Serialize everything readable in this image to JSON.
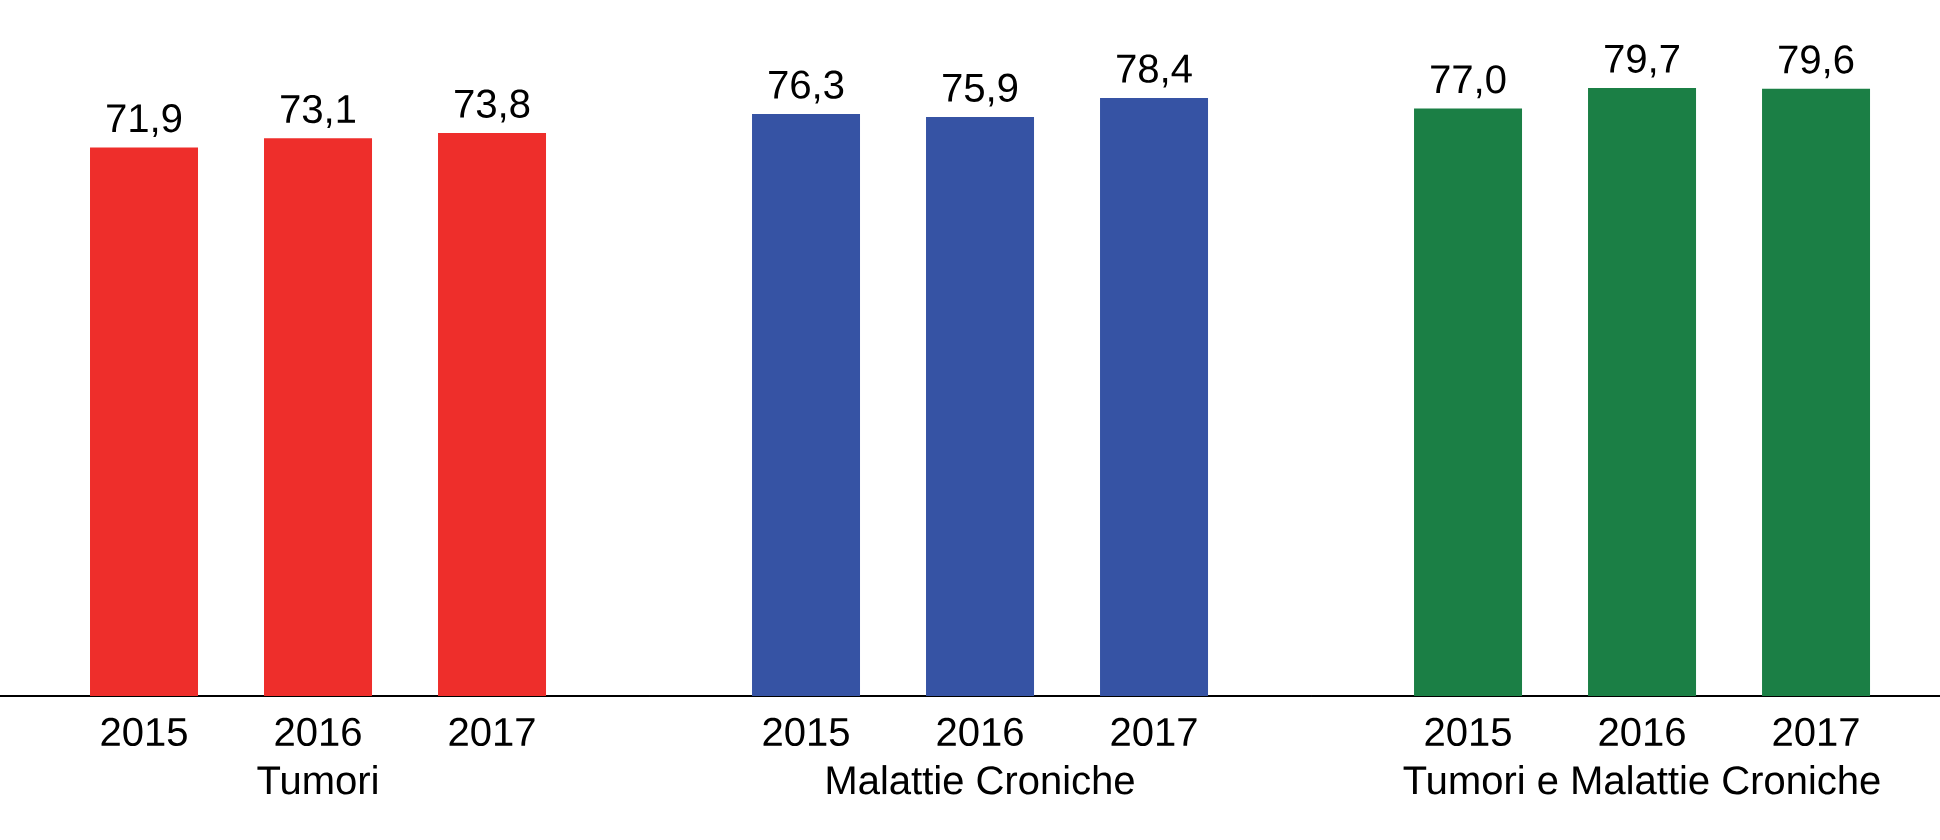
{
  "chart_data": [
    {
      "type": "bar",
      "categories": [
        "2015",
        "2016",
        "2017"
      ],
      "values": [
        71.9,
        73.1,
        73.8
      ],
      "value_labels": [
        "71,9",
        "73,1",
        "73,8"
      ],
      "colors": [
        "#ee2e2b",
        "#ee2e2b",
        "#ee2e2b"
      ],
      "xlabel": "Tumori",
      "tick_labels": "x"
    },
    {
      "type": "bar",
      "categories": [
        "2015",
        "2016",
        "2017"
      ],
      "values": [
        76.3,
        75.9,
        78.4
      ],
      "value_labels": [
        "76,3",
        "75,9",
        "78,4"
      ],
      "colors": [
        "#3653a4",
        "#3653a4",
        "#3653a4"
      ],
      "xlabel": "Malattie Croniche",
      "tick_labels": "x"
    },
    {
      "type": "bar",
      "categories": [
        "2015",
        "2016",
        "2017"
      ],
      "values": [
        77.0,
        79.7,
        79.6
      ],
      "value_labels": [
        "77,0",
        "79,7",
        "79,6"
      ],
      "colors": [
        "#1b7f45",
        "#1b7f45",
        "#1b7f45"
      ],
      "xlabel": "Tumori e Malattie Croniche",
      "tick_labels": "x"
    }
  ]
}
